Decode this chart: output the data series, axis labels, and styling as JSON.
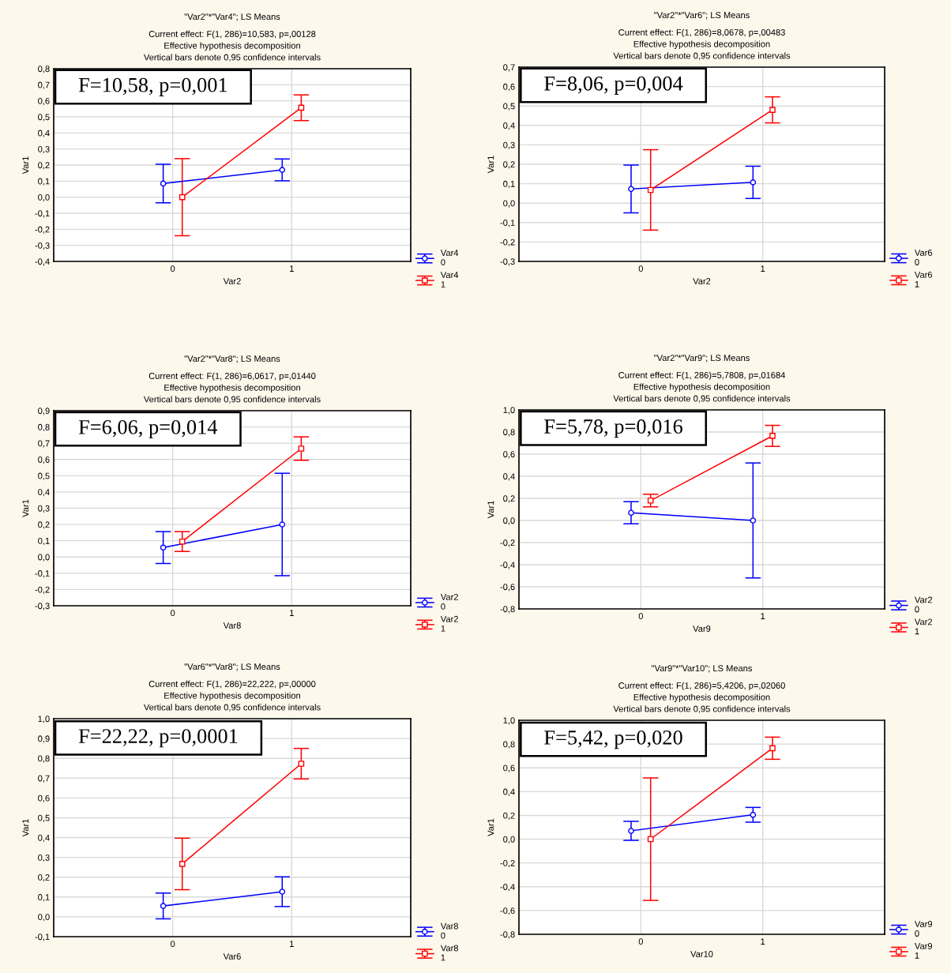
{
  "chart_data": [
    {
      "type": "line",
      "title": "\"Var2\"*\"Var4\"; LS Means",
      "subtitle": "Current effect: F(1, 286)=10,583, p=,00128\nEffective hypothesis decomposition\nVertical bars denote 0,95 confidence intervals",
      "xlabel": "Var2",
      "ylabel": "Var1",
      "annotations": [
        "F=10,58, p=0,001"
      ],
      "xlim": [
        -1,
        2
      ],
      "xticks": [
        0,
        1
      ],
      "ylim": [
        -0.4,
        0.8
      ],
      "yticks": [
        {
          "value": -0.4,
          "label": "-0,4"
        },
        {
          "value": -0.3,
          "label": "-0,3"
        },
        {
          "value": -0.2,
          "label": "-0,2"
        },
        {
          "value": -0.1,
          "label": "-0,1"
        },
        {
          "value": 0,
          "label": "0,0"
        },
        {
          "value": 0.1,
          "label": "0,1"
        },
        {
          "value": 0.2,
          "label": "0,2"
        },
        {
          "value": 0.3,
          "label": "0,3"
        },
        {
          "value": 0.4,
          "label": "0,4"
        },
        {
          "value": 0.5,
          "label": "0,5"
        },
        {
          "value": 0.6,
          "label": "0,6"
        },
        {
          "value": 0.7,
          "label": "0,7"
        },
        {
          "value": 0.8,
          "label": "0,8"
        }
      ],
      "grid": true,
      "legend": "bottom right",
      "series": [
        {
          "name": "Var4\n0",
          "color": "#0000ff",
          "marker": "circle",
          "x": [
            -0.08,
            0.92
          ],
          "values": [
            0.085,
            0.17
          ],
          "errors": [
            0.12,
            0.068
          ]
        },
        {
          "name": "Var4\n1",
          "color": "#ff0000",
          "marker": "square",
          "x": [
            0.08,
            1.08
          ],
          "values": [
            0.0,
            0.557
          ],
          "errors": [
            0.24,
            0.08
          ]
        }
      ]
    },
    {
      "type": "line",
      "title": "\"Var2\"*\"Var6\"; LS Means",
      "subtitle": "Current effect: F(1, 286)=8,0678, p=,00483\nEffective hypothesis decomposition\nVertical bars denote 0,95 confidence intervals",
      "xlabel": "Var2",
      "ylabel": "Var1",
      "annotations": [
        "F=8,06, p=0,004"
      ],
      "xlim": [
        -1,
        2
      ],
      "xticks": [
        0,
        1
      ],
      "ylim": [
        -0.3,
        0.7
      ],
      "yticks": [
        {
          "value": -0.3,
          "label": "-0,3"
        },
        {
          "value": -0.2,
          "label": "-0,2"
        },
        {
          "value": -0.1,
          "label": "-0,1"
        },
        {
          "value": 0,
          "label": "0,0"
        },
        {
          "value": 0.1,
          "label": "0,1"
        },
        {
          "value": 0.2,
          "label": "0,2"
        },
        {
          "value": 0.3,
          "label": "0,3"
        },
        {
          "value": 0.4,
          "label": "0,4"
        },
        {
          "value": 0.5,
          "label": "0,5"
        },
        {
          "value": 0.6,
          "label": "0,6"
        },
        {
          "value": 0.7,
          "label": "0,7"
        }
      ],
      "grid": true,
      "legend": "bottom right",
      "series": [
        {
          "name": "Var6\n0",
          "color": "#0000ff",
          "marker": "circle",
          "x": [
            -0.08,
            0.92
          ],
          "values": [
            0.073,
            0.107
          ],
          "errors": [
            0.123,
            0.083
          ]
        },
        {
          "name": "Var6\n1",
          "color": "#ff0000",
          "marker": "square",
          "x": [
            0.08,
            1.08
          ],
          "values": [
            0.068,
            0.48
          ],
          "errors": [
            0.207,
            0.067
          ]
        }
      ]
    },
    {
      "type": "line",
      "title": "\"Var2\"*\"Var8\"; LS Means",
      "subtitle": "Current effect: F(1, 286)=6,0617, p=,01440\nEffective hypothesis decomposition\nVertical bars denote 0,95 confidence intervals",
      "xlabel": "Var8",
      "ylabel": "Var1",
      "annotations": [
        "F=6,06, p=0,014"
      ],
      "xlim": [
        -1,
        2
      ],
      "xticks": [
        0,
        1
      ],
      "ylim": [
        -0.3,
        0.9
      ],
      "yticks": [
        {
          "value": -0.3,
          "label": "-0,3"
        },
        {
          "value": -0.2,
          "label": "-0,2"
        },
        {
          "value": -0.1,
          "label": "-0,1"
        },
        {
          "value": 0,
          "label": "0,0"
        },
        {
          "value": 0.1,
          "label": "0,1"
        },
        {
          "value": 0.2,
          "label": "0,2"
        },
        {
          "value": 0.3,
          "label": "0,3"
        },
        {
          "value": 0.4,
          "label": "0,4"
        },
        {
          "value": 0.5,
          "label": "0,5"
        },
        {
          "value": 0.6,
          "label": "0,6"
        },
        {
          "value": 0.7,
          "label": "0,7"
        },
        {
          "value": 0.8,
          "label": "0,8"
        },
        {
          "value": 0.9,
          "label": "0,9"
        }
      ],
      "grid": true,
      "legend": "bottom right",
      "series": [
        {
          "name": "Var2\n0",
          "color": "#0000ff",
          "marker": "circle",
          "x": [
            -0.08,
            0.92
          ],
          "values": [
            0.058,
            0.2
          ],
          "errors": [
            0.098,
            0.315
          ]
        },
        {
          "name": "Var2\n1",
          "color": "#ff0000",
          "marker": "square",
          "x": [
            0.08,
            1.08
          ],
          "values": [
            0.095,
            0.667
          ],
          "errors": [
            0.061,
            0.072
          ]
        }
      ]
    },
    {
      "type": "line",
      "title": "\"Var2\"*\"Var9\"; LS Means",
      "subtitle": "Current effect: F(1, 286)=5,7808, p=,01684\nEffective hypothesis decomposition\nVertical bars denote 0,95 confidence intervals",
      "xlabel": "Var9",
      "ylabel": "Var1",
      "annotations": [
        "F=5,78, p=0,016"
      ],
      "xlim": [
        -1,
        2
      ],
      "xticks": [
        0,
        1
      ],
      "ylim": [
        -0.8,
        1.0
      ],
      "yticks": [
        {
          "value": -0.8,
          "label": "-0,8"
        },
        {
          "value": -0.6,
          "label": "-0,6"
        },
        {
          "value": -0.4,
          "label": "-0,4"
        },
        {
          "value": -0.2,
          "label": "-0,2"
        },
        {
          "value": 0,
          "label": "0,0"
        },
        {
          "value": 0.2,
          "label": "0,2"
        },
        {
          "value": 0.4,
          "label": "0,4"
        },
        {
          "value": 0.6,
          "label": "0,6"
        },
        {
          "value": 0.8,
          "label": "0,8"
        },
        {
          "value": 1.0,
          "label": "1,0"
        }
      ],
      "grid": true,
      "legend": "bottom right",
      "series": [
        {
          "name": "Var2\n0",
          "color": "#0000ff",
          "marker": "circle",
          "x": [
            -0.08,
            0.92
          ],
          "values": [
            0.07,
            0.0
          ],
          "errors": [
            0.1,
            0.52
          ]
        },
        {
          "name": "Var2\n1",
          "color": "#ff0000",
          "marker": "square",
          "x": [
            0.08,
            1.08
          ],
          "values": [
            0.18,
            0.765
          ],
          "errors": [
            0.057,
            0.095
          ]
        }
      ]
    },
    {
      "type": "line",
      "title": "\"Var6\"*\"Var8\"; LS Means",
      "subtitle": "Current effect: F(1, 286)=22,222, p=,00000\nEffective hypothesis decomposition\nVertical bars denote 0,95 confidence intervals",
      "xlabel": "Var6",
      "ylabel": "Var1",
      "annotations": [
        "F=22,22, p=0,0001"
      ],
      "xlim": [
        -1,
        2
      ],
      "xticks": [
        0,
        1
      ],
      "ylim": [
        -0.1,
        1.0
      ],
      "yticks": [
        {
          "value": -0.1,
          "label": "-0,1"
        },
        {
          "value": 0,
          "label": "0,0"
        },
        {
          "value": 0.1,
          "label": "0,1"
        },
        {
          "value": 0.2,
          "label": "0,2"
        },
        {
          "value": 0.3,
          "label": "0,3"
        },
        {
          "value": 0.4,
          "label": "0,4"
        },
        {
          "value": 0.5,
          "label": "0,5"
        },
        {
          "value": 0.6,
          "label": "0,6"
        },
        {
          "value": 0.7,
          "label": "0,7"
        },
        {
          "value": 0.8,
          "label": "0,8"
        },
        {
          "value": 0.9,
          "label": "0,9"
        },
        {
          "value": 1.0,
          "label": "1,0"
        }
      ],
      "grid": true,
      "legend": "bottom right",
      "series": [
        {
          "name": "Var8\n0",
          "color": "#0000ff",
          "marker": "circle",
          "x": [
            -0.08,
            0.92
          ],
          "values": [
            0.055,
            0.127
          ],
          "errors": [
            0.065,
            0.075
          ]
        },
        {
          "name": "Var8\n1",
          "color": "#ff0000",
          "marker": "square",
          "x": [
            0.08,
            1.08
          ],
          "values": [
            0.267,
            0.773
          ],
          "errors": [
            0.13,
            0.077
          ]
        }
      ]
    },
    {
      "type": "line",
      "title": "\"Var9\"*\"Var10\"; LS Means",
      "subtitle": "Current effect: F(1, 286)=5,4206, p=,02060\nEffective hypothesis decomposition\nVertical bars denote 0,95 confidence intervals",
      "xlabel": "Var10",
      "ylabel": "Var1",
      "annotations": [
        "F=5,42, p=0,020"
      ],
      "xlim": [
        -1,
        2
      ],
      "xticks": [
        0,
        1
      ],
      "ylim": [
        -0.8,
        1.0
      ],
      "yticks": [
        {
          "value": -0.8,
          "label": "-0,8"
        },
        {
          "value": -0.6,
          "label": "-0,6"
        },
        {
          "value": -0.4,
          "label": "-0,4"
        },
        {
          "value": -0.2,
          "label": "-0,2"
        },
        {
          "value": 0,
          "label": "0,0"
        },
        {
          "value": 0.2,
          "label": "0,2"
        },
        {
          "value": 0.4,
          "label": "0,4"
        },
        {
          "value": 0.6,
          "label": "0,6"
        },
        {
          "value": 0.8,
          "label": "0,8"
        },
        {
          "value": 1.0,
          "label": "1,0"
        }
      ],
      "grid": true,
      "legend": "bottom right",
      "series": [
        {
          "name": "Var9\n0",
          "color": "#0000ff",
          "marker": "circle",
          "x": [
            -0.08,
            0.92
          ],
          "values": [
            0.07,
            0.205
          ],
          "errors": [
            0.08,
            0.062
          ]
        },
        {
          "name": "Var9\n1",
          "color": "#ff0000",
          "marker": "square",
          "x": [
            0.08,
            1.08
          ],
          "values": [
            0.0,
            0.765
          ],
          "errors": [
            0.515,
            0.093
          ]
        }
      ]
    }
  ]
}
